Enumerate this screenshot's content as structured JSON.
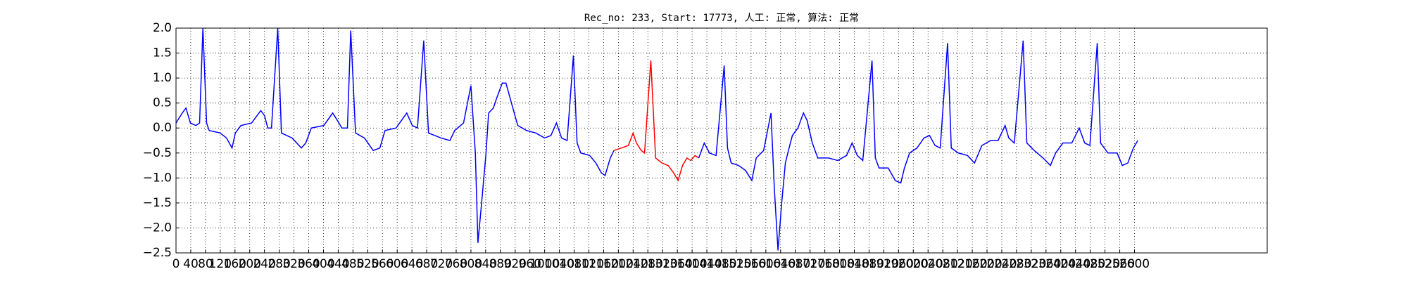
{
  "chart_data": {
    "type": "line",
    "title": "Rec_no: 233, Start: 17773, 人工: 正常, 算法: 正常",
    "xlim": [
      0,
      2960
    ],
    "xticks": [
      0,
      40,
      80,
      120,
      160,
      200,
      240,
      280,
      320,
      360,
      400,
      440,
      480,
      520,
      560,
      600,
      640,
      680,
      720,
      760,
      800,
      840,
      880,
      920,
      960,
      1000,
      1040,
      1080,
      1120,
      1160,
      1200,
      1240,
      1280,
      1320,
      1360,
      1400,
      1440,
      1480,
      1520,
      1560,
      1600,
      1640,
      1680,
      1720,
      1760,
      1800,
      1840,
      1880,
      1920,
      1960,
      2000,
      2040,
      2080,
      2120,
      2160,
      2200,
      2240,
      2280,
      2320,
      2360,
      2400,
      2440,
      2480,
      2520,
      2560,
      2600
    ],
    "ylim": [
      -2.5,
      2.0
    ],
    "yticks": [
      {
        "value": -2.5,
        "label": "−2.5"
      },
      {
        "value": -2.0,
        "label": "−2.0"
      },
      {
        "value": -1.5,
        "label": "−1.5"
      },
      {
        "value": -1.0,
        "label": "−1.0"
      },
      {
        "value": -0.5,
        "label": "−0.5"
      },
      {
        "value": 0,
        "label": "0.0"
      },
      {
        "value": 0.5,
        "label": "0.5"
      },
      {
        "value": 1.0,
        "label": "1.0"
      },
      {
        "value": 1.5,
        "label": "1.5"
      },
      {
        "value": 2.0,
        "label": "2.0"
      }
    ],
    "grid": true,
    "series": [
      {
        "color": "#0000ff",
        "x": [
          0,
          17,
          27,
          39,
          54,
          64,
          73,
          83,
          90,
          120,
          137,
          152,
          161,
          176,
          205,
          230,
          240,
          249,
          259,
          276,
          286,
          315,
          340,
          352,
          367,
          401,
          425,
          438,
          450,
          465,
          474,
          487,
          511,
          535,
          553,
          567,
          597,
          626,
          641,
          655,
          672,
          685,
          719,
          743,
          756,
          780,
          800,
          812,
          819,
          829,
          841,
          848,
          861,
          870,
          885,
          895,
          910,
          927,
          951,
          976,
          1000,
          1017,
          1032,
          1046,
          1061,
          1078,
          1088,
          1098,
          1122,
          1139,
          1154,
          1164,
          1178,
          1188
        ],
        "values": [
          0.1,
          0.3,
          0.4,
          0.1,
          0.05,
          0.1,
          2.0,
          0.1,
          -0.05,
          -0.1,
          -0.2,
          -0.4,
          -0.1,
          0.05,
          0.1,
          0.35,
          0.25,
          0.0,
          0.0,
          2.0,
          -0.1,
          -0.2,
          -0.4,
          -0.3,
          0.0,
          0.05,
          0.3,
          0.15,
          0.0,
          0.0,
          1.95,
          -0.1,
          -0.2,
          -0.45,
          -0.4,
          -0.05,
          0.0,
          0.3,
          0.05,
          0.0,
          1.75,
          -0.1,
          -0.2,
          -0.25,
          -0.05,
          0.1,
          0.85,
          -0.5,
          -2.3,
          -1.5,
          -0.5,
          0.3,
          0.4,
          0.6,
          0.9,
          0.9,
          0.5,
          0.05,
          -0.05,
          -0.1,
          -0.2,
          -0.15,
          0.1,
          -0.2,
          -0.25,
          1.45,
          -0.3,
          -0.5,
          -0.55,
          -0.7,
          -0.9,
          -0.95,
          -0.6,
          -0.45
        ]
      },
      {
        "color": "#ff0000",
        "x": [
          1188,
          1208,
          1227,
          1240,
          1249,
          1262,
          1271,
          1288,
          1301,
          1318,
          1335,
          1350,
          1362,
          1374,
          1386,
          1396,
          1408,
          1418
        ],
        "values": [
          -0.45,
          -0.4,
          -0.35,
          -0.1,
          -0.3,
          -0.45,
          -0.5,
          1.35,
          -0.6,
          -0.7,
          -0.75,
          -0.9,
          -1.05,
          -0.75,
          -0.6,
          -0.65,
          -0.55,
          -0.6
        ]
      },
      {
        "color": "#0000ff",
        "x": [
          1418,
          1433,
          1447,
          1465,
          1487,
          1496,
          1506,
          1526,
          1545,
          1562,
          1574,
          1594,
          1614,
          1623,
          1633,
          1643,
          1653,
          1663,
          1672,
          1687,
          1702,
          1712,
          1726,
          1741,
          1770,
          1795,
          1819,
          1834,
          1848,
          1863,
          1888,
          1897,
          1907,
          1932,
          1951,
          1966,
          1976,
          1990,
          2010,
          2029,
          2044,
          2059,
          2073,
          2093,
          2103,
          2122,
          2147,
          2166,
          2186,
          2210,
          2230,
          2249,
          2259,
          2274,
          2298,
          2308,
          2328,
          2352,
          2372,
          2386,
          2406,
          2430,
          2450,
          2465,
          2479,
          2499,
          2508,
          2528,
          2553,
          2567,
          2582,
          2597,
          2609
        ],
        "values": [
          -0.6,
          -0.3,
          -0.5,
          -0.55,
          1.25,
          -0.4,
          -0.7,
          -0.75,
          -0.85,
          -1.05,
          -0.6,
          -0.45,
          0.3,
          -1.2,
          -2.45,
          -1.5,
          -0.7,
          -0.4,
          -0.15,
          0.0,
          0.3,
          0.15,
          -0.3,
          -0.6,
          -0.6,
          -0.65,
          -0.55,
          -0.3,
          -0.55,
          -0.65,
          1.35,
          -0.6,
          -0.8,
          -0.8,
          -1.05,
          -1.1,
          -0.8,
          -0.5,
          -0.4,
          -0.2,
          -0.15,
          -0.35,
          -0.4,
          1.7,
          -0.4,
          -0.5,
          -0.55,
          -0.7,
          -0.35,
          -0.25,
          -0.25,
          0.05,
          -0.2,
          -0.3,
          1.75,
          -0.3,
          -0.45,
          -0.6,
          -0.75,
          -0.5,
          -0.3,
          -0.3,
          0.0,
          -0.3,
          -0.35,
          1.7,
          -0.3,
          -0.5,
          -0.5,
          -0.75,
          -0.7,
          -0.4,
          -0.25
        ]
      }
    ]
  }
}
